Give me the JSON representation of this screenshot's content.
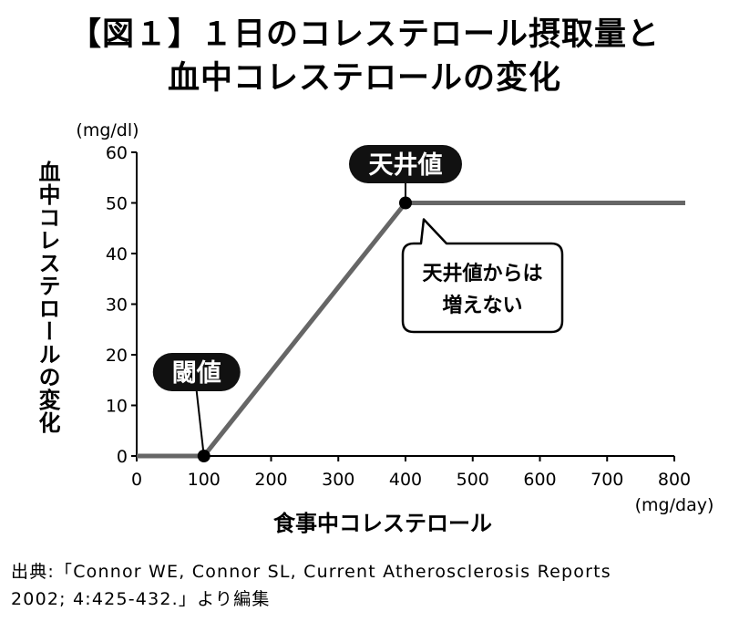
{
  "title": {
    "line1": "【図１】１日のコレステロール摂取量と",
    "line2": "血中コレステロールの変化"
  },
  "source": {
    "line1": "出典:「Connor WE, Connor SL, Current Atherosclerosis Reports",
    "line2": "2002; 4:425-432.」より編集"
  },
  "chart_data": {
    "type": "line",
    "xlabel": "食事中コレステロール",
    "ylabel": "血中コレステロールの変化",
    "x_unit": "(mg/day)",
    "y_unit": "(mg/dl)",
    "xlim": [
      0,
      800
    ],
    "ylim": [
      0,
      60
    ],
    "x_ticks": [
      0,
      100,
      200,
      300,
      400,
      500,
      600,
      700,
      800
    ],
    "y_ticks": [
      0,
      10,
      20,
      30,
      40,
      50,
      60
    ],
    "grid": false,
    "line_color": "#666666",
    "points": [
      {
        "x": 0,
        "y": 0
      },
      {
        "x": 100,
        "y": 0
      },
      {
        "x": 400,
        "y": 50
      },
      {
        "x": 820,
        "y": 50
      }
    ],
    "markers": [
      {
        "x": 100,
        "y": 0,
        "label": "閾値"
      },
      {
        "x": 400,
        "y": 50,
        "label": "天井値"
      }
    ],
    "callout": {
      "line1": "天井値からは",
      "line2": "増えない",
      "anchor": {
        "x": 400,
        "y": 50
      }
    }
  }
}
